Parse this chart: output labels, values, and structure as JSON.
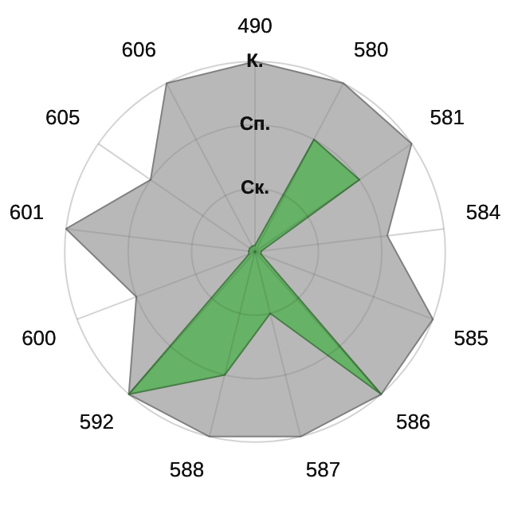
{
  "chart_data": {
    "type": "radar",
    "categories": [
      "490",
      "580",
      "581",
      "584",
      "585",
      "586",
      "587",
      "588",
      "592",
      "600",
      "601",
      "605",
      "606"
    ],
    "series": [
      {
        "color": "#b8b8b8",
        "values": [
          3,
          3,
          3,
          2.1,
          3,
          3,
          3,
          3,
          3,
          2,
          3,
          2,
          3
        ]
      },
      {
        "color": "#66b266",
        "values": [
          0.1,
          2,
          2,
          0.1,
          0.1,
          3,
          1,
          2,
          3,
          0.1,
          0.1,
          0.1,
          0.1
        ]
      }
    ],
    "ylim": [
      0,
      3
    ],
    "yticks": [
      {
        "value": 1,
        "label": "Ск."
      },
      {
        "value": 2,
        "label": "Сп."
      },
      {
        "value": 3,
        "label": "К."
      }
    ],
    "grid": true,
    "legend": false
  }
}
